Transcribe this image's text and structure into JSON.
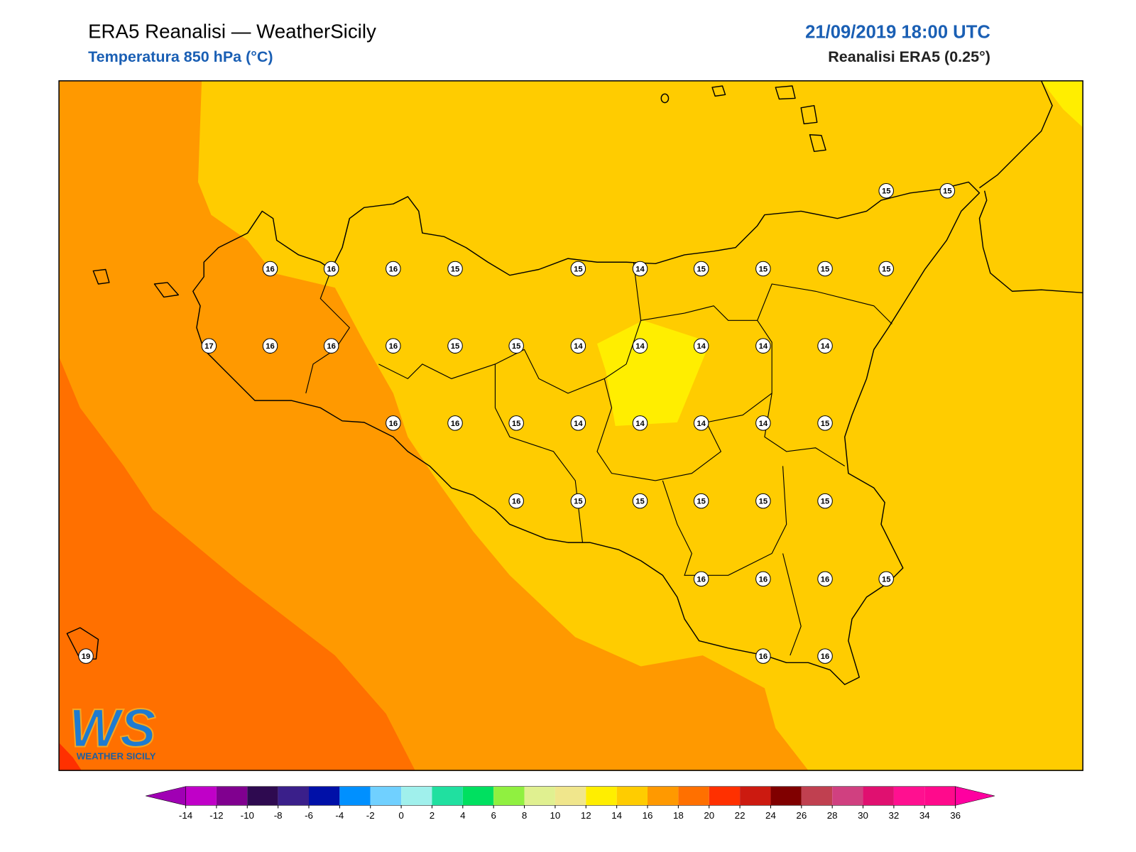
{
  "header": {
    "title": "ERA5 Reanalisi — WeatherSicily",
    "subtitle": "Temperatura 850 hPa (°C)",
    "date": "21/09/2019 18:00 UTC",
    "source": "Reanalisi ERA5 (0.25°)"
  },
  "logo": {
    "text": "WS",
    "subtext": "WEATHER SICILY"
  },
  "stations": [
    15,
    15,
    16,
    16,
    16,
    15,
    15,
    14,
    15,
    15,
    15,
    15,
    17,
    16,
    16,
    16,
    15,
    15,
    14,
    14,
    14,
    14,
    14,
    16,
    16,
    15,
    14,
    14,
    14,
    14,
    15,
    16,
    15,
    15,
    15,
    15,
    15,
    16,
    16,
    16,
    15,
    19,
    16,
    16
  ],
  "colorbar": {
    "ticks": [
      -14,
      -12,
      -10,
      -8,
      -6,
      -4,
      -2,
      0,
      2,
      4,
      6,
      8,
      10,
      12,
      14,
      16,
      18,
      20,
      22,
      24,
      26,
      28,
      30,
      32,
      34,
      36
    ],
    "colors": [
      "#a000b4",
      "#c000c8",
      "#80008f",
      "#2e0a50",
      "#3a1f8a",
      "#0010a8",
      "#0090ff",
      "#70d0ff",
      "#a0f0ec",
      "#20e0a0",
      "#00e060",
      "#90f040",
      "#e0f090",
      "#f0e68c",
      "#ffee00",
      "#ffcc00",
      "#ff9900",
      "#ff7000",
      "#ff3000",
      "#cc1a10",
      "#800000",
      "#c04050",
      "#d04080",
      "#e01070",
      "#ff1090",
      "#ff0a8c",
      "#ff00a0"
    ]
  }
}
